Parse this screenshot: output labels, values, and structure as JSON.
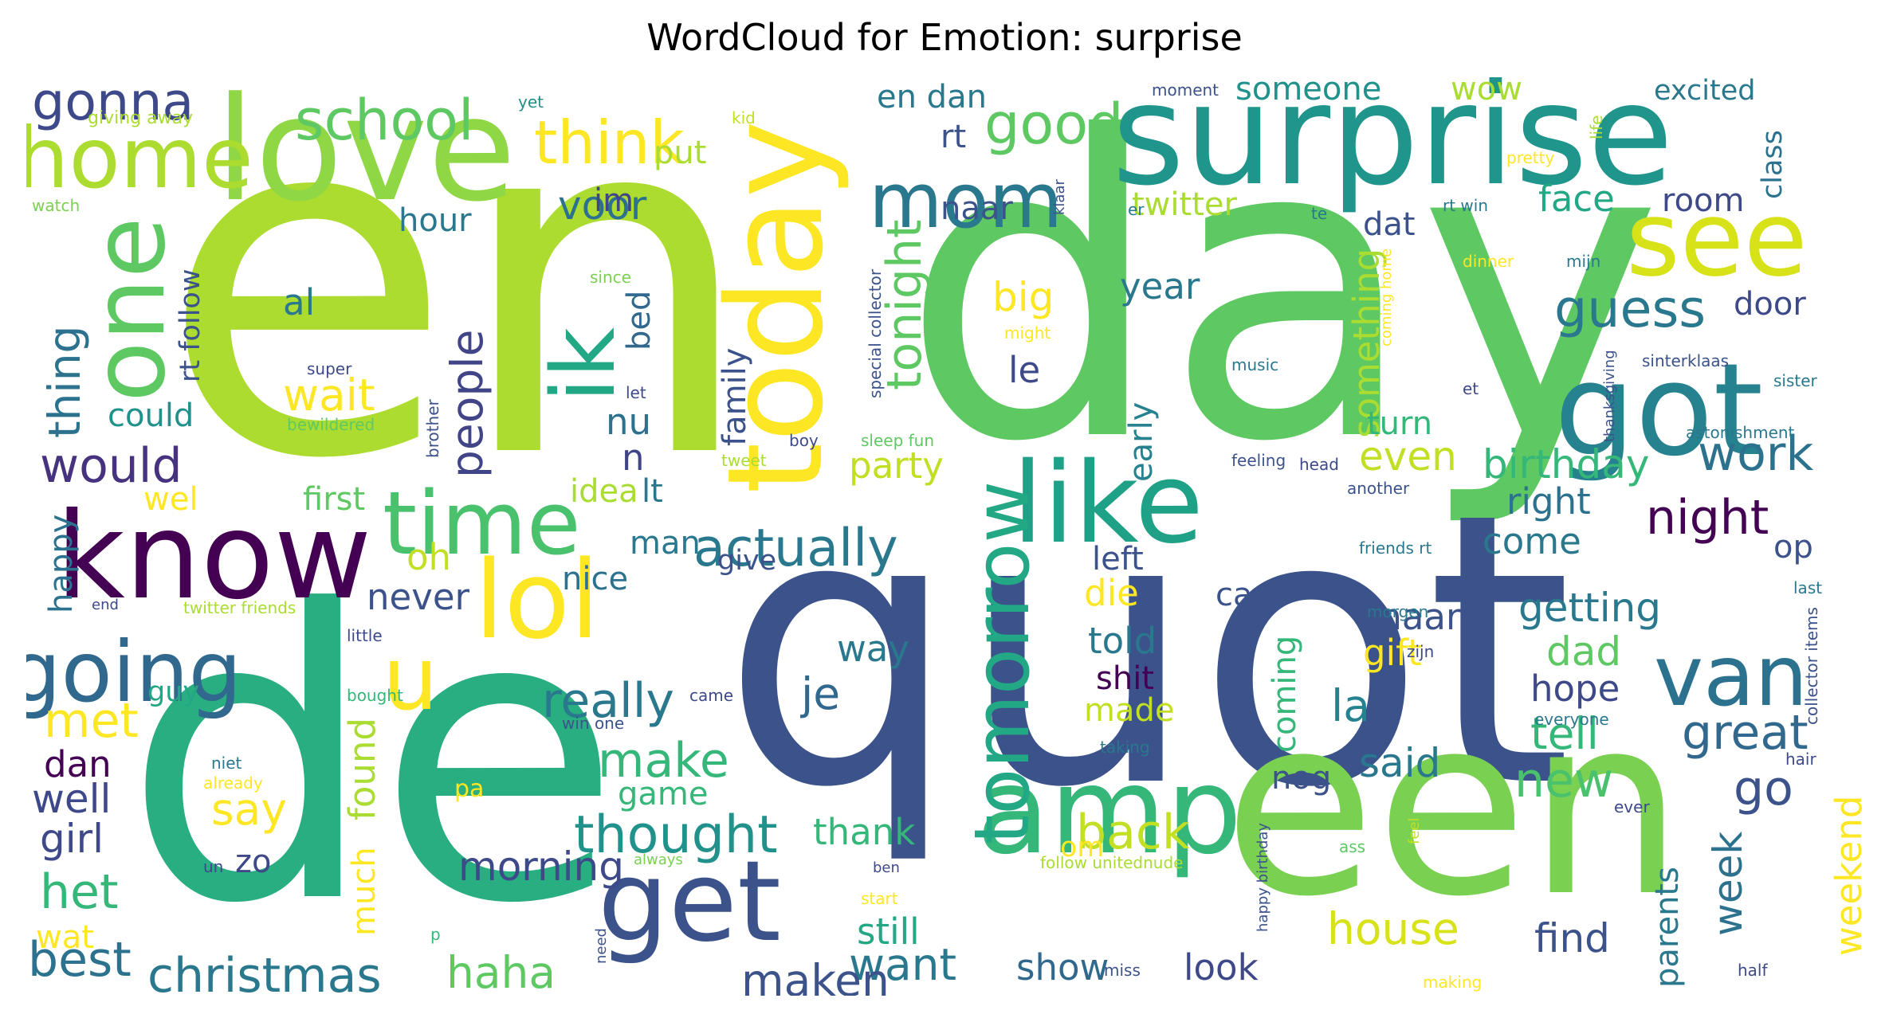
{
  "title": "WordCloud for Emotion: surprise",
  "palette": [
    "#440154",
    "#3b528b",
    "#21918c",
    "#28ae80",
    "#5ec962",
    "#addc30",
    "#fde725"
  ],
  "words": [
    {
      "text": "en",
      "color": "#addc30"
    },
    {
      "text": "day",
      "color": "#5ec962"
    },
    {
      "text": "quot",
      "color": "#3b528b"
    },
    {
      "text": "de",
      "color": "#28ae80"
    },
    {
      "text": "een",
      "color": "#7ad151"
    },
    {
      "text": "surprise",
      "color": "#1f958b"
    },
    {
      "text": "love",
      "color": "#8fd744"
    },
    {
      "text": "know",
      "color": "#440154"
    },
    {
      "text": "today",
      "color": "#fde725"
    },
    {
      "text": "got",
      "color": "#26828e"
    },
    {
      "text": "see",
      "color": "#d8e219"
    },
    {
      "text": "amp",
      "color": "#35b779"
    },
    {
      "text": "get",
      "color": "#3b528b"
    },
    {
      "text": "like",
      "color": "#1fa187"
    },
    {
      "text": "one",
      "color": "#5ec962"
    },
    {
      "text": "lol",
      "color": "#fde725"
    },
    {
      "text": "time",
      "color": "#4ac16d"
    },
    {
      "text": "home",
      "color": "#addc30"
    },
    {
      "text": "going",
      "color": "#31688e"
    },
    {
      "text": "u",
      "color": "#fde725"
    },
    {
      "text": "van",
      "color": "#2c728e"
    },
    {
      "text": "mom",
      "color": "#2a788e"
    },
    {
      "text": "ik",
      "color": "#22a884"
    },
    {
      "text": "tomorrow",
      "color": "#22a884"
    },
    {
      "text": "school",
      "color": "#5ec962"
    },
    {
      "text": "good",
      "color": "#5ec962"
    },
    {
      "text": "think",
      "color": "#fde725"
    },
    {
      "text": "gonna",
      "color": "#3e4989"
    },
    {
      "text": "guess",
      "color": "#2a788e"
    },
    {
      "text": "actually",
      "color": "#2a788e"
    },
    {
      "text": "tonight",
      "color": "#5ec962"
    },
    {
      "text": "really",
      "color": "#2a788e"
    },
    {
      "text": "great",
      "color": "#31688e"
    },
    {
      "text": "people",
      "color": "#414487"
    },
    {
      "text": "work",
      "color": "#2c728e"
    },
    {
      "text": "would",
      "color": "#46327e"
    },
    {
      "text": "thought",
      "color": "#21918c"
    },
    {
      "text": "night",
      "color": "#440154"
    },
    {
      "text": "christmas",
      "color": "#2a788e"
    },
    {
      "text": "haha",
      "color": "#5ec962"
    },
    {
      "text": "back",
      "color": "#c2df23"
    },
    {
      "text": "want",
      "color": "#2a788e"
    },
    {
      "text": "best",
      "color": "#2c728e"
    },
    {
      "text": "make",
      "color": "#35b779"
    },
    {
      "text": "je",
      "color": "#31688e"
    },
    {
      "text": "la",
      "color": "#26828e"
    },
    {
      "text": "new",
      "color": "#4ac16d"
    },
    {
      "text": "go",
      "color": "#3b528b"
    },
    {
      "text": "wait",
      "color": "#fde725"
    },
    {
      "text": "voor",
      "color": "#2c728e"
    },
    {
      "text": "thing",
      "color": "#2c728e"
    },
    {
      "text": "birthday",
      "color": "#35b779"
    },
    {
      "text": "something",
      "color": "#aadc32"
    },
    {
      "text": "even",
      "color": "#c2df23"
    },
    {
      "text": "maken",
      "color": "#3b528b"
    },
    {
      "text": "morning",
      "color": "#3e4989"
    },
    {
      "text": "house",
      "color": "#d8e219"
    },
    {
      "text": "find",
      "color": "#3b528b"
    },
    {
      "text": "het",
      "color": "#35b779"
    },
    {
      "text": "met",
      "color": "#fde725"
    },
    {
      "text": "girl",
      "color": "#3e4989"
    },
    {
      "text": "well",
      "color": "#3e4989"
    },
    {
      "text": "dan",
      "color": "#440154"
    },
    {
      "text": "say",
      "color": "#fde725"
    },
    {
      "text": "said",
      "color": "#2a788e"
    },
    {
      "text": "tell",
      "color": "#35b779"
    },
    {
      "text": "hope",
      "color": "#3e4989"
    },
    {
      "text": "dad",
      "color": "#5ec962"
    },
    {
      "text": "getting",
      "color": "#2a788e"
    },
    {
      "text": "maar",
      "color": "#3b528b"
    },
    {
      "text": "week",
      "color": "#2c728e"
    },
    {
      "text": "weekend",
      "color": "#fde725"
    },
    {
      "text": "parents",
      "color": "#2a788e"
    },
    {
      "text": "still",
      "color": "#22a884"
    },
    {
      "text": "show",
      "color": "#31688e"
    },
    {
      "text": "look",
      "color": "#3e4989"
    },
    {
      "text": "thank",
      "color": "#35b779"
    },
    {
      "text": "party",
      "color": "#c2df23"
    },
    {
      "text": "big",
      "color": "#fde725"
    },
    {
      "text": "year",
      "color": "#2a788e"
    },
    {
      "text": "le",
      "color": "#3e4989"
    },
    {
      "text": "early",
      "color": "#26828e"
    },
    {
      "text": "turn",
      "color": "#35b779"
    },
    {
      "text": "right",
      "color": "#2c728e"
    },
    {
      "text": "come",
      "color": "#2a788e"
    },
    {
      "text": "op",
      "color": "#3b528b"
    },
    {
      "text": "door",
      "color": "#3e4989"
    },
    {
      "text": "room",
      "color": "#3e4989"
    },
    {
      "text": "face",
      "color": "#22a884"
    },
    {
      "text": "dat",
      "color": "#3b528b"
    },
    {
      "text": "twitter",
      "color": "#aadc32"
    },
    {
      "text": "naar",
      "color": "#3b528b"
    },
    {
      "text": "rt",
      "color": "#3b528b"
    },
    {
      "text": "en dan",
      "color": "#2a788e"
    },
    {
      "text": "someone",
      "color": "#21918c"
    },
    {
      "text": "wow",
      "color": "#aadc32"
    },
    {
      "text": "excited",
      "color": "#2a788e"
    },
    {
      "text": "class",
      "color": "#2c728e"
    },
    {
      "text": "im",
      "color": "#414487"
    },
    {
      "text": "put",
      "color": "#aadc32"
    },
    {
      "text": "hour",
      "color": "#2a788e"
    },
    {
      "text": "al",
      "color": "#2a788e"
    },
    {
      "text": "nu",
      "color": "#2c728e"
    },
    {
      "text": "n",
      "color": "#414487"
    },
    {
      "text": "bed",
      "color": "#31688e"
    },
    {
      "text": "family",
      "color": "#3b528b"
    },
    {
      "text": "could",
      "color": "#21918c"
    },
    {
      "text": "rt follow",
      "color": "#3b528b"
    },
    {
      "text": "first",
      "color": "#5ec962"
    },
    {
      "text": "wel",
      "color": "#fde725"
    },
    {
      "text": "happy",
      "color": "#2c728e"
    },
    {
      "text": "oh",
      "color": "#c2df23"
    },
    {
      "text": "never",
      "color": "#3b528b"
    },
    {
      "text": "man",
      "color": "#2a788e"
    },
    {
      "text": "nice",
      "color": "#2c728e"
    },
    {
      "text": "idea",
      "color": "#aadc32"
    },
    {
      "text": "lt",
      "color": "#2a788e"
    },
    {
      "text": "give",
      "color": "#3b528b"
    },
    {
      "text": "left",
      "color": "#3b528b"
    },
    {
      "text": "die",
      "color": "#fde725"
    },
    {
      "text": "told",
      "color": "#2a788e"
    },
    {
      "text": "shit",
      "color": "#440154"
    },
    {
      "text": "made",
      "color": "#c2df23"
    },
    {
      "text": "coming",
      "color": "#35b779"
    },
    {
      "text": "car",
      "color": "#3b528b"
    },
    {
      "text": "gift",
      "color": "#fde725"
    },
    {
      "text": "nog",
      "color": "#3b528b"
    },
    {
      "text": "game",
      "color": "#35b779"
    },
    {
      "text": "way",
      "color": "#2a788e"
    },
    {
      "text": "om",
      "color": "#fde725"
    },
    {
      "text": "found",
      "color": "#aadc32"
    },
    {
      "text": "much",
      "color": "#fde725"
    },
    {
      "text": "zo",
      "color": "#3e4989"
    },
    {
      "text": "wat",
      "color": "#fde725"
    },
    {
      "text": "guy",
      "color": "#22a884"
    },
    {
      "text": "pa",
      "color": "#fde725"
    },
    {
      "text": "yet",
      "color": "#21918c"
    },
    {
      "text": "kid",
      "color": "#c2df23"
    },
    {
      "text": "giving away",
      "color": "#aadc32"
    },
    {
      "text": "watch",
      "color": "#7ad151"
    },
    {
      "text": "since",
      "color": "#7ad151"
    },
    {
      "text": "super",
      "color": "#3e4989"
    },
    {
      "text": "let",
      "color": "#3e4989"
    },
    {
      "text": "bewildered",
      "color": "#5ec962"
    },
    {
      "text": "brother",
      "color": "#3b528b"
    },
    {
      "text": "boy",
      "color": "#3e4989"
    },
    {
      "text": "sleep fun",
      "color": "#5ec962"
    },
    {
      "text": "special collector",
      "color": "#3b528b"
    },
    {
      "text": "tweet",
      "color": "#aadc32"
    },
    {
      "text": "end",
      "color": "#3e4989"
    },
    {
      "text": "twitter friends",
      "color": "#aadc32"
    },
    {
      "text": "little",
      "color": "#3e4989"
    },
    {
      "text": "bought",
      "color": "#35b779"
    },
    {
      "text": "win one",
      "color": "#3b528b"
    },
    {
      "text": "came",
      "color": "#3e4989"
    },
    {
      "text": "niet",
      "color": "#2a788e"
    },
    {
      "text": "already",
      "color": "#fde725"
    },
    {
      "text": "un",
      "color": "#3e4989"
    },
    {
      "text": "always",
      "color": "#7ad151"
    },
    {
      "text": "p",
      "color": "#35b779"
    },
    {
      "text": "need",
      "color": "#3b528b"
    },
    {
      "text": "ben",
      "color": "#3e4989"
    },
    {
      "text": "start",
      "color": "#fde725"
    },
    {
      "text": "follow unitednude",
      "color": "#aadc32"
    },
    {
      "text": "ass",
      "color": "#5ec962"
    },
    {
      "text": "miss",
      "color": "#3b528b"
    },
    {
      "text": "making",
      "color": "#fde725"
    },
    {
      "text": "moment",
      "color": "#3b528b"
    },
    {
      "text": "klaar",
      "color": "#3b528b"
    },
    {
      "text": "er",
      "color": "#2a788e"
    },
    {
      "text": "te",
      "color": "#2a788e"
    },
    {
      "text": "rt win",
      "color": "#2a788e"
    },
    {
      "text": "life",
      "color": "#aadc32"
    },
    {
      "text": "pretty",
      "color": "#fde725"
    },
    {
      "text": "dinner",
      "color": "#fde725"
    },
    {
      "text": "mijn",
      "color": "#2a788e"
    },
    {
      "text": "might",
      "color": "#fde725"
    },
    {
      "text": "coming home",
      "color": "#fde725"
    },
    {
      "text": "sinterklaas",
      "color": "#3b528b"
    },
    {
      "text": "music",
      "color": "#2a788e"
    },
    {
      "text": "et",
      "color": "#3e4989"
    },
    {
      "text": "sister",
      "color": "#2a788e"
    },
    {
      "text": "thanksgiving",
      "color": "#3b528b"
    },
    {
      "text": "astonishment",
      "color": "#2a788e"
    },
    {
      "text": "feeling",
      "color": "#3b528b"
    },
    {
      "text": "head",
      "color": "#3e4989"
    },
    {
      "text": "another",
      "color": "#3b528b"
    },
    {
      "text": "friends rt",
      "color": "#2a788e"
    },
    {
      "text": "collector items",
      "color": "#3b528b"
    },
    {
      "text": "last",
      "color": "#2a788e"
    },
    {
      "text": "morgen",
      "color": "#2a788e"
    },
    {
      "text": "zijn",
      "color": "#3e4989"
    },
    {
      "text": "everyone",
      "color": "#2a788e"
    },
    {
      "text": "taking",
      "color": "#2a788e"
    },
    {
      "text": "hair",
      "color": "#3e4989"
    },
    {
      "text": "happy birthday",
      "color": "#3b528b"
    },
    {
      "text": "ever",
      "color": "#3e4989"
    },
    {
      "text": "feel",
      "color": "#c2df23"
    },
    {
      "text": "half",
      "color": "#3e4989"
    }
  ]
}
